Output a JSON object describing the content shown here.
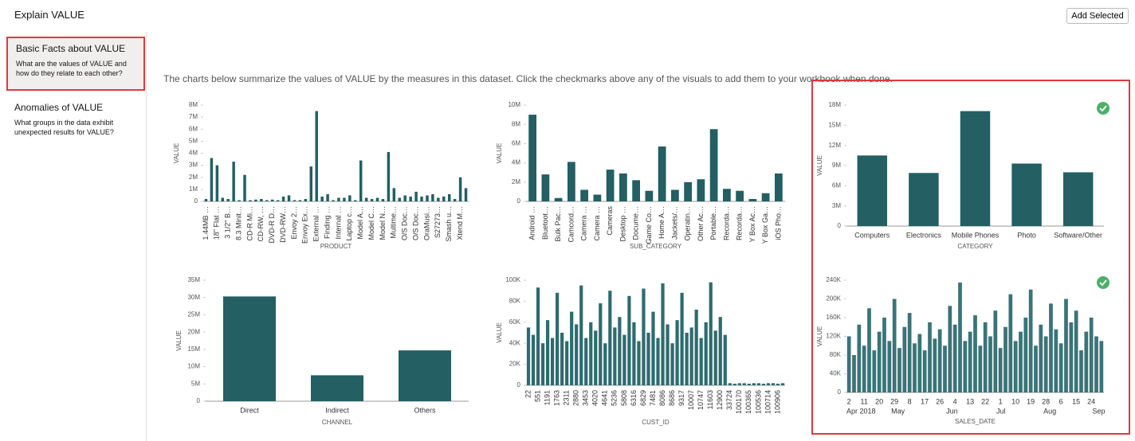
{
  "header": {
    "title": "Explain VALUE",
    "button": "Add Selected"
  },
  "sidebar": {
    "items": [
      {
        "title": "Basic Facts about VALUE",
        "description": "What are the values of VALUE and how do they relate to each other?"
      },
      {
        "title": "Anomalies of VALUE",
        "description": "What groups in the data exhibit unexpected results for VALUE?"
      }
    ]
  },
  "intro": "The charts below summarize the values of VALUE by the measures in this dataset. Click the checkmarks above any of the visuals to add them to your workbook when done.",
  "charts": [
    {
      "type": "bar",
      "x_label": "PRODUCT",
      "y_label": "VALUE",
      "color": "#235f63",
      "categories": [
        "1.44MB …",
        null,
        "18\" Flat …",
        null,
        "3 1/2\" B…",
        null,
        "8.3 Minit…",
        null,
        "CD-R Mi…",
        null,
        "CD-RW, …",
        null,
        "DVD-R D…",
        null,
        "DVD-RW…",
        null,
        "Envoy 2…",
        null,
        "Envoy Ex…",
        null,
        "External …",
        null,
        "Finding …",
        null,
        "Internal …",
        null,
        "Laptop c…",
        null,
        "Model A…",
        null,
        "Model C…",
        null,
        "Model N…",
        null,
        "Multime…",
        null,
        "O/S Doc…",
        null,
        "O/S Doc…",
        null,
        "OraMusi…",
        null,
        "S27273…",
        null,
        "Smash u…",
        null,
        "Xtend M…",
        null
      ],
      "values": [
        200000,
        3600000,
        3000000,
        300000,
        200000,
        3300000,
        100000,
        2200000,
        100000,
        150000,
        200000,
        100000,
        150000,
        100000,
        400000,
        500000,
        100000,
        100000,
        200000,
        2900000,
        7500000,
        400000,
        600000,
        100000,
        300000,
        300000,
        500000,
        100000,
        3400000,
        300000,
        200000,
        300000,
        200000,
        4100000,
        1100000,
        300000,
        500000,
        400000,
        800000,
        400000,
        500000,
        600000,
        300000,
        400000,
        600000,
        200000,
        2000000,
        1100000
      ],
      "ylim": [
        0,
        8000000
      ],
      "yticks": [
        0,
        {
          "value": 1000000,
          "label": "1M"
        },
        {
          "value": 2000000,
          "label": "2M"
        },
        {
          "value": 3000000,
          "label": "3M"
        },
        {
          "value": 4000000,
          "label": "4M"
        },
        {
          "value": 5000000,
          "label": "5M"
        },
        {
          "value": 6000000,
          "label": "6M"
        },
        {
          "value": 7000000,
          "label": "7M"
        },
        {
          "value": 8000000,
          "label": "8M"
        }
      ]
    },
    {
      "type": "bar",
      "x_label": "SUB_CATEGORY",
      "y_label": "VALUE",
      "color": "#235f63",
      "categories": [
        "Android …",
        "Bluetoot…",
        "Bulk Pac…",
        "Camcord…",
        "Camera …",
        "Camera …",
        "Cameras",
        "Desktop …",
        "Docume…",
        "Game Co…",
        "Home A…",
        "Jackets/…",
        "Operatin…",
        "Other Ac…",
        "Portable…",
        "Recorda…",
        "Recorda…",
        "Y Box Ac…",
        "Y Box Ga…",
        "iOS Pho…"
      ],
      "values": [
        9000000,
        2800000,
        350000,
        4100000,
        1200000,
        700000,
        3300000,
        2900000,
        2200000,
        1100000,
        5700000,
        1200000,
        2000000,
        2300000,
        7500000,
        1300000,
        1100000,
        250000,
        850000,
        2900000
      ],
      "ylim": [
        0,
        10000000
      ],
      "yticks": [
        0,
        {
          "value": 2000000,
          "label": "2M"
        },
        {
          "value": 4000000,
          "label": "4M"
        },
        {
          "value": 6000000,
          "label": "6M"
        },
        {
          "value": 8000000,
          "label": "8M"
        },
        {
          "value": 10000000,
          "label": "10M"
        }
      ]
    },
    {
      "type": "bar",
      "x_label": "CATEGORY",
      "y_label": "VALUE",
      "color": "#235f63",
      "categories": [
        "Computers",
        "Electronics",
        "Mobile Phones",
        "Photo",
        "Software/Other"
      ],
      "values": [
        10500000,
        7900000,
        17100000,
        9300000,
        8000000
      ],
      "ylim": [
        0,
        18000000
      ],
      "yticks": [
        0,
        {
          "value": 3000000,
          "label": "3M"
        },
        {
          "value": 6000000,
          "label": "6M"
        },
        {
          "value": 9000000,
          "label": "9M"
        },
        {
          "value": 12000000,
          "label": "12M"
        },
        {
          "value": 15000000,
          "label": "15M"
        },
        {
          "value": 18000000,
          "label": "18M"
        }
      ]
    },
    {
      "type": "bar",
      "x_label": "CHANNEL",
      "y_label": "VALUE",
      "color": "#235f63",
      "categories": [
        "Direct",
        "Indirect",
        "Others"
      ],
      "values": [
        30300000,
        7500000,
        14700000
      ],
      "ylim": [
        0,
        35000000
      ],
      "yticks": [
        0,
        {
          "value": 5000000,
          "label": "5M"
        },
        {
          "value": 10000000,
          "label": "10M"
        },
        {
          "value": 15000000,
          "label": "15M"
        },
        {
          "value": 20000000,
          "label": "20M"
        },
        {
          "value": 25000000,
          "label": "25M"
        },
        {
          "value": 30000000,
          "label": "30M"
        },
        {
          "value": 35000000,
          "label": "35M"
        }
      ]
    },
    {
      "type": "bar",
      "x_label": "CUST_ID",
      "y_label": "VALUE",
      "color": "#2e6b6f",
      "categories": [
        "22",
        null,
        "551",
        null,
        "1191",
        null,
        "1763",
        null,
        "2311",
        null,
        "2880",
        null,
        "3453",
        null,
        "4020",
        null,
        "4641",
        null,
        "5236",
        null,
        "5808",
        null,
        "6316",
        null,
        "6829",
        null,
        "7481",
        null,
        "8086",
        null,
        "8686",
        null,
        "9317",
        null,
        "10007",
        null,
        "10747",
        null,
        "11603",
        null,
        "12900",
        null,
        "33724",
        null,
        "100170",
        null,
        "100365",
        null,
        "100536",
        null,
        "100714",
        null,
        "100906",
        null
      ],
      "values": [
        55000,
        48000,
        93000,
        40000,
        62000,
        45000,
        88000,
        50000,
        42000,
        70000,
        58000,
        95000,
        45000,
        60000,
        52000,
        78000,
        40000,
        90000,
        55000,
        65000,
        48000,
        85000,
        60000,
        42000,
        92000,
        50000,
        70000,
        45000,
        97000,
        58000,
        40000,
        62000,
        88000,
        50000,
        55000,
        72000,
        45000,
        60000,
        98000,
        52000,
        65000,
        48000,
        2000,
        1500,
        2000,
        2000,
        1500,
        2000,
        2000,
        1500,
        2000,
        2000,
        1500,
        2000
      ],
      "ylim": [
        0,
        100000
      ],
      "yticks": [
        0,
        {
          "value": 20000,
          "label": "20K"
        },
        {
          "value": 40000,
          "label": "40K"
        },
        {
          "value": 60000,
          "label": "60K"
        },
        {
          "value": 80000,
          "label": "80K"
        },
        {
          "value": 100000,
          "label": "100K"
        }
      ]
    },
    {
      "type": "bar",
      "x_label": "SALES_DATE",
      "y_label": "VALUE",
      "color": "#3a7478",
      "categories": [
        "2",
        null,
        null,
        "11",
        null,
        null,
        "20",
        null,
        null,
        "29",
        null,
        null,
        "8",
        null,
        null,
        "17",
        null,
        null,
        "26",
        null,
        null,
        "4",
        null,
        null,
        "13",
        null,
        null,
        "22",
        null,
        null,
        "1",
        null,
        null,
        "10",
        null,
        null,
        "19",
        null,
        null,
        "28",
        null,
        null,
        "6",
        null,
        null,
        "15",
        null,
        null,
        "24",
        null,
        null
      ],
      "months": [
        "Apr 2018",
        "May",
        "Jun",
        "Jul",
        "Aug",
        "Sep"
      ],
      "values": [
        120000,
        80000,
        145000,
        100000,
        180000,
        90000,
        130000,
        160000,
        110000,
        200000,
        95000,
        140000,
        170000,
        105000,
        125000,
        90000,
        150000,
        115000,
        135000,
        100000,
        185000,
        145000,
        235000,
        110000,
        130000,
        165000,
        100000,
        150000,
        120000,
        175000,
        95000,
        140000,
        210000,
        110000,
        130000,
        160000,
        220000,
        100000,
        145000,
        120000,
        190000,
        135000,
        105000,
        200000,
        150000,
        175000,
        90000,
        130000,
        160000,
        120000,
        110000
      ],
      "ylim": [
        0,
        240000
      ],
      "yticks": [
        0,
        {
          "value": 40000,
          "label": "40K"
        },
        {
          "value": 80000,
          "label": "80K"
        },
        {
          "value": 120000,
          "label": "120K"
        },
        {
          "value": 160000,
          "label": "160K"
        },
        {
          "value": 200000,
          "label": "200K"
        },
        {
          "value": 240000,
          "label": "240K"
        }
      ]
    }
  ]
}
